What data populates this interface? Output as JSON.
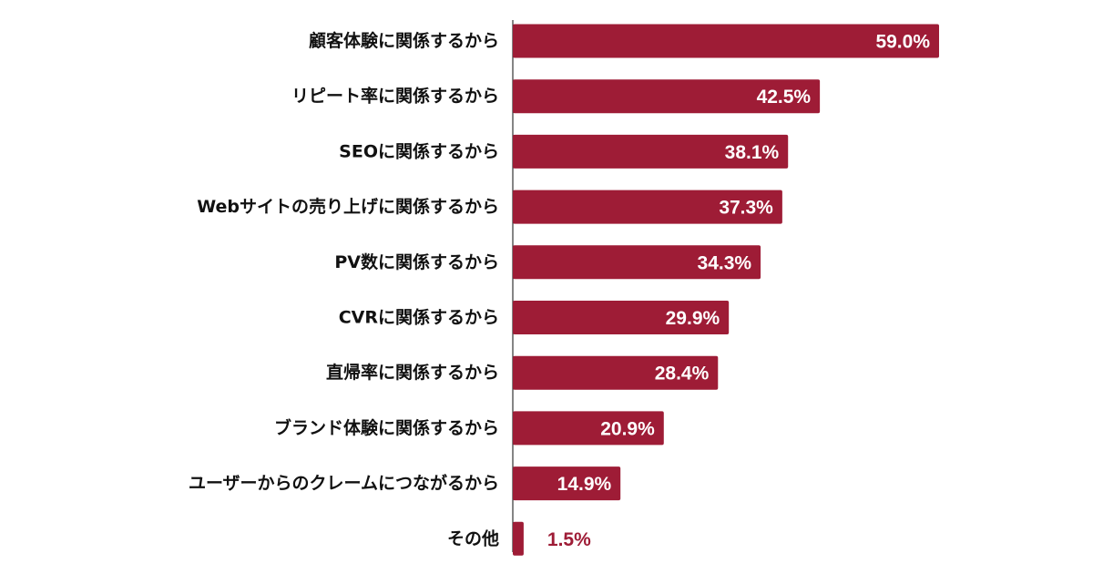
{
  "chart_data": {
    "type": "bar",
    "orientation": "horizontal",
    "categories": [
      "顧客体験に関係するから",
      "リピート率に関係するから",
      "SEOに関係するから",
      "Webサイトの売り上げに関係するから",
      "PV数に関係するから",
      "CVRに関係するから",
      "直帰率に関係するから",
      "ブランド体験に関係するから",
      "ユーザーからのクレームにつながるから",
      "その他"
    ],
    "values": [
      59.0,
      42.5,
      38.1,
      37.3,
      34.3,
      29.9,
      28.4,
      20.9,
      14.9,
      1.5
    ],
    "value_labels": [
      "59.0%",
      "42.5%",
      "38.1%",
      "37.3%",
      "34.3%",
      "29.9%",
      "28.4%",
      "20.9%",
      "14.9%",
      "1.5%"
    ],
    "unit": "%",
    "title": "",
    "xlabel": "",
    "ylabel": "",
    "xlim": [
      0,
      59.0
    ],
    "grid": false,
    "legend": "none",
    "colors": {
      "bar": "#9e1c36",
      "label_inside": "#ffffff",
      "label_outside": "#9e1c36",
      "category_text": "#111111",
      "axis_line": "#333333"
    }
  }
}
